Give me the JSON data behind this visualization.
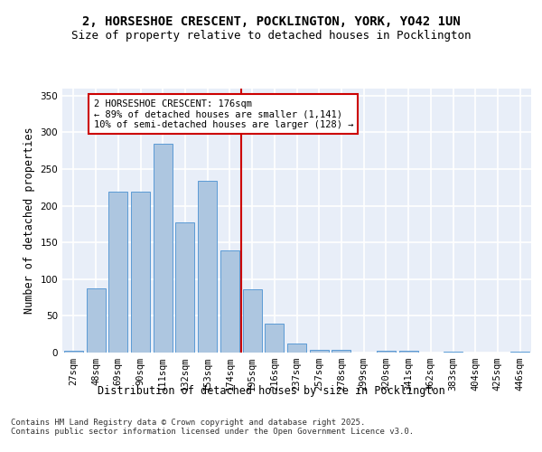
{
  "title1": "2, HORSESHOE CRESCENT, POCKLINGTON, YORK, YO42 1UN",
  "title2": "Size of property relative to detached houses in Pocklington",
  "xlabel": "Distribution of detached houses by size in Pocklington",
  "ylabel": "Number of detached properties",
  "categories": [
    "27sqm",
    "48sqm",
    "69sqm",
    "90sqm",
    "111sqm",
    "132sqm",
    "153sqm",
    "174sqm",
    "195sqm",
    "216sqm",
    "237sqm",
    "257sqm",
    "278sqm",
    "299sqm",
    "320sqm",
    "341sqm",
    "362sqm",
    "383sqm",
    "404sqm",
    "425sqm",
    "446sqm"
  ],
  "values": [
    2,
    87,
    219,
    219,
    284,
    177,
    234,
    139,
    86,
    40,
    12,
    4,
    4,
    0,
    2,
    3,
    0,
    1,
    0,
    0,
    1
  ],
  "bar_color": "#adc6e0",
  "bar_edge_color": "#5b9bd5",
  "annotation_text": "2 HORSESHOE CRESCENT: 176sqm\n← 89% of detached houses are smaller (1,141)\n10% of semi-detached houses are larger (128) →",
  "annotation_box_color": "#ffffff",
  "annotation_box_edge_color": "#cc0000",
  "line_color": "#cc0000",
  "background_color": "#e8eef8",
  "grid_color": "#ffffff",
  "ylim": [
    0,
    360
  ],
  "yticks": [
    0,
    50,
    100,
    150,
    200,
    250,
    300,
    350
  ],
  "footer_text": "Contains HM Land Registry data © Crown copyright and database right 2025.\nContains public sector information licensed under the Open Government Licence v3.0.",
  "title_fontsize": 10,
  "subtitle_fontsize": 9,
  "axis_label_fontsize": 8.5,
  "tick_fontsize": 7.5,
  "annotation_fontsize": 7.5,
  "footer_fontsize": 6.5
}
